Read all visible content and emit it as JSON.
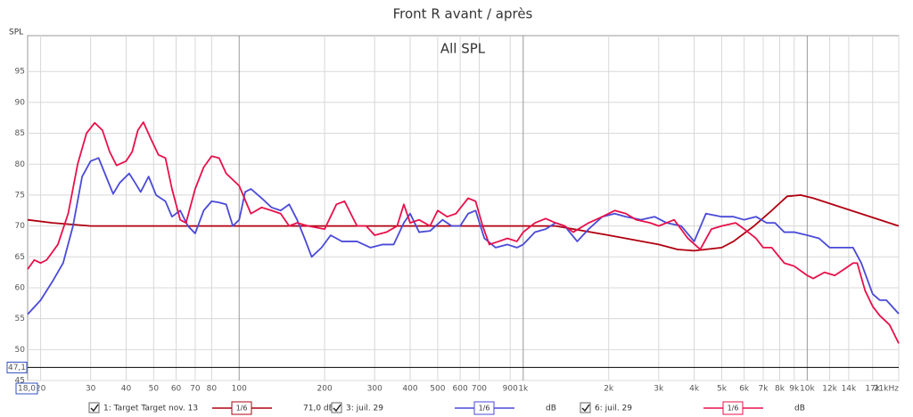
{
  "chart_data": {
    "type": "line",
    "title": "Front R avant / après",
    "subtitle": "All SPL",
    "y_label": "SPL",
    "log_x": true,
    "grid": true,
    "xlim": [
      18,
      21000
    ],
    "ylim": [
      45,
      100.8
    ],
    "xticks": [
      20,
      30,
      40,
      50,
      60,
      70,
      80,
      100,
      200,
      300,
      400,
      500,
      600,
      700,
      900,
      {
        "value": 1000,
        "label": "1k"
      },
      {
        "value": 2000,
        "label": "2k"
      },
      {
        "value": 3000,
        "label": "3k"
      },
      {
        "value": 4000,
        "label": "4k"
      },
      {
        "value": 5000,
        "label": "5k"
      },
      {
        "value": 6000,
        "label": "6k"
      },
      {
        "value": 7000,
        "label": "7k"
      },
      {
        "value": 8000,
        "label": "8k"
      },
      {
        "value": 9000,
        "label": "9k"
      },
      {
        "value": 10000,
        "label": "10k"
      },
      {
        "value": 12000,
        "label": "12k"
      },
      {
        "value": 14000,
        "label": "14k"
      },
      {
        "value": 17000,
        "label": "17k"
      },
      {
        "value": 21000,
        "label": "21kHz"
      }
    ],
    "yticks": [
      45,
      50,
      55,
      60,
      65,
      70,
      75,
      80,
      85,
      90,
      95
    ],
    "cursor_x": {
      "value": 18,
      "label": "18,0"
    },
    "cursor_y": {
      "value": 47.1,
      "label": "47,1"
    },
    "series": [
      {
        "name": "1: Target Target nov. 13",
        "color": "#b00010",
        "smoothing": "1/6",
        "offset": "71,0 dB",
        "x": [
          18,
          22,
          30,
          1300,
          2000,
          3000,
          3500,
          4000,
          5000,
          5500,
          6500,
          7500,
          8500,
          9500,
          10500,
          21000
        ],
        "values": [
          71,
          70.5,
          70,
          70,
          68.5,
          67,
          66.2,
          66,
          66.5,
          67.5,
          70,
          72.5,
          74.8,
          75,
          74.5,
          70
        ]
      },
      {
        "name": "3: juil. 29",
        "color": "#4a4ad8",
        "smoothing": "1/6",
        "offset": "dB",
        "x": [
          18,
          20,
          22,
          24,
          26,
          28,
          30,
          32,
          34,
          36,
          38,
          41,
          43,
          45,
          48,
          51,
          55,
          58,
          62,
          66,
          70,
          75,
          80,
          85,
          90,
          95,
          100,
          105,
          110,
          120,
          130,
          140,
          150,
          160,
          170,
          180,
          195,
          210,
          230,
          260,
          290,
          320,
          350,
          380,
          400,
          430,
          470,
          520,
          560,
          600,
          640,
          680,
          730,
          800,
          880,
          950,
          1000,
          1100,
          1200,
          1300,
          1400,
          1550,
          1700,
          1900,
          2100,
          2300,
          2600,
          2900,
          3200,
          3600,
          4000,
          4400,
          5000,
          5500,
          6000,
          6600,
          7200,
          7700,
          8300,
          9000,
          10000,
          11000,
          12000,
          13000,
          14500,
          15500,
          17000,
          18000,
          19000,
          21000
        ],
        "values": [
          55.7,
          58,
          61,
          64,
          70,
          78,
          80.5,
          81,
          78,
          75.2,
          77,
          78.5,
          77,
          75.5,
          78,
          75,
          74,
          71.5,
          72.5,
          70,
          68.8,
          72.5,
          74,
          73.8,
          73.5,
          70,
          71,
          75.5,
          76,
          74.5,
          73,
          72.5,
          73.5,
          71,
          68,
          65,
          66.5,
          68.5,
          67.5,
          67.5,
          66.5,
          67,
          67,
          70.5,
          72,
          69,
          69.2,
          71,
          70,
          70,
          72,
          72.5,
          68,
          66.5,
          67,
          66.5,
          67,
          69,
          69.5,
          70.5,
          70,
          67.5,
          69.5,
          71.5,
          72,
          71.5,
          71,
          71.5,
          70.5,
          70,
          67.5,
          72,
          71.5,
          71.5,
          71,
          71.5,
          70.5,
          70.5,
          69,
          69,
          68.5,
          68,
          66.5,
          66.5,
          66.5,
          64,
          59,
          58,
          58,
          55.8
        ]
      },
      {
        "name": "6: juil. 29",
        "color": "#e8104a",
        "smoothing": "1/6",
        "offset": "dB",
        "x": [
          18,
          19,
          20,
          21,
          23,
          25,
          27,
          29,
          31,
          33,
          35,
          37,
          40,
          42,
          44,
          46,
          49,
          52,
          55,
          58,
          62,
          65,
          70,
          75,
          80,
          85,
          90,
          100,
          110,
          120,
          130,
          140,
          150,
          160,
          175,
          200,
          220,
          235,
          260,
          280,
          300,
          330,
          360,
          380,
          400,
          430,
          470,
          500,
          540,
          580,
          640,
          680,
          720,
          760,
          820,
          880,
          950,
          1000,
          1100,
          1200,
          1300,
          1400,
          1500,
          1700,
          1900,
          2100,
          2300,
          2500,
          2800,
          3000,
          3400,
          3800,
          4200,
          4600,
          5000,
          5600,
          6000,
          6600,
          7000,
          7500,
          8300,
          9000,
          10000,
          10500,
          11500,
          12500,
          13500,
          14500,
          15000,
          16000,
          17000,
          18000,
          19500,
          21000
        ],
        "values": [
          63,
          64.5,
          64,
          64.5,
          67,
          72,
          80,
          85,
          86.7,
          85.5,
          82,
          79.8,
          80.5,
          82,
          85.5,
          86.8,
          84,
          81.5,
          81,
          76,
          71,
          70.5,
          76,
          79.5,
          81.3,
          81,
          78.5,
          76.5,
          72,
          73,
          72.5,
          72,
          70,
          70.5,
          70,
          69.5,
          73.5,
          74,
          70,
          70,
          68.5,
          69,
          70,
          73.5,
          70.5,
          71,
          70,
          72.5,
          71.5,
          72,
          74.5,
          74,
          70,
          67,
          67.5,
          68,
          67.5,
          69,
          70.5,
          71.2,
          70.5,
          70,
          69,
          70.5,
          71.5,
          72.5,
          72,
          71,
          70.5,
          70,
          71,
          68,
          66.2,
          69.5,
          70,
          70.5,
          69.5,
          68,
          66.5,
          66.5,
          64,
          63.5,
          62,
          61.5,
          62.5,
          62,
          63,
          64,
          64,
          59.5,
          57,
          55.5,
          54,
          51
        ]
      }
    ]
  }
}
